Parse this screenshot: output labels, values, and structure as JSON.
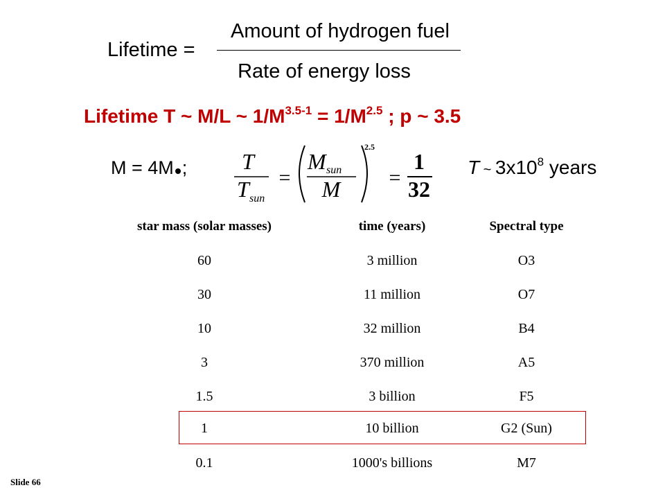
{
  "fraction": {
    "label": "Lifetime =",
    "numerator": "Amount of hydrogen fuel",
    "denominator": "Rate of energy loss"
  },
  "formula": {
    "part1": "Lifetime T ~ M/L ~ 1/M",
    "sup1": "3.5-1",
    "part2": " = 1/M",
    "sup2": "2.5",
    "part3": " ; p ~ 3.5",
    "color": "#c00000"
  },
  "mass": {
    "prefix": "M = 4M",
    "suffix": ";"
  },
  "equation": {
    "lhs_num": "T",
    "lhs_den": "T",
    "lhs_den_sub": "sun",
    "eq1": "=",
    "paren_num": "M",
    "paren_num_sub": "sun",
    "paren_den": "M",
    "exponent": "2.5",
    "eq2": "=",
    "rhs_num": "1",
    "rhs_den": "32"
  },
  "result": {
    "prefix": "T",
    "tilde": " ~ ",
    "mantissa": "3x10",
    "exponent": "8",
    "suffix": " years"
  },
  "table": {
    "headers": [
      "star mass (solar masses)",
      "time (years)",
      "Spectral type"
    ],
    "rows": [
      [
        "60",
        "3 million",
        "O3"
      ],
      [
        "30",
        "11 million",
        "O7"
      ],
      [
        "10",
        "32 million",
        "B4"
      ],
      [
        "3",
        "370 million",
        "A5"
      ],
      [
        "1.5",
        "3 billion",
        "F5"
      ],
      [
        "1",
        "10 billion",
        "G2 (Sun)"
      ],
      [
        "0.1",
        "1000's billions",
        "M7"
      ]
    ],
    "highlighted_row": 5,
    "highlight_color": "#c00000"
  },
  "footer": "Slide 66"
}
